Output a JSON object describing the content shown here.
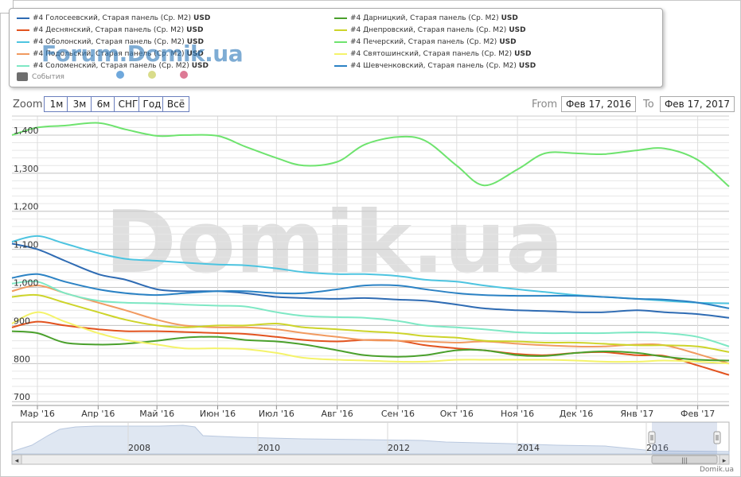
{
  "legend": {
    "items": [
      {
        "name": "#4 Голосеевский, Старая панель (Ср. М2)",
        "currency": "USD",
        "color": "#2e6bb3"
      },
      {
        "name": "#4 Деснянский, Старая панель (Ср. М2)",
        "currency": "USD",
        "color": "#e2531f"
      },
      {
        "name": "#4 Оболонский, Старая панель (Ср. М2)",
        "currency": "USD",
        "color": "#4dc4e0"
      },
      {
        "name": "#4 Подольский, Старая панель (Ср. М2)",
        "currency": "USD",
        "color": "#f19a60"
      },
      {
        "name": "#4 Соломенский, Старая панель (Ср. М2)",
        "currency": "USD",
        "color": "#7ee8c4"
      },
      {
        "name": "#4 Дарницкий, Старая панель (Ср. М2)",
        "currency": "USD",
        "color": "#4aa02c"
      },
      {
        "name": "#4 Днепровский, Старая панель (Ср. М2)",
        "currency": "USD",
        "color": "#cdd42a"
      },
      {
        "name": "#4 Печерский, Старая панель (Ср. М2)",
        "currency": "USD",
        "color": "#6ee36e"
      },
      {
        "name": "#4 Святошинский, Старая панель (Ср. М2)",
        "currency": "USD",
        "color": "#f4f36a"
      },
      {
        "name": "#4 Шевченковский, Старая панель (Ср. М2)",
        "currency": "USD",
        "color": "#2b82c4"
      }
    ],
    "events_label": "События",
    "event_dots": [
      "#6fa8dc",
      "#d9dc8a",
      "#dd7a95"
    ]
  },
  "watermark": {
    "forum": "Forum.Domik.ua",
    "big": "Domik.ua"
  },
  "zoom": {
    "label": "Zoom",
    "buttons": [
      "1м",
      "3м",
      "6м",
      "СНГ",
      "Год",
      "Всё"
    ]
  },
  "range": {
    "from_label": "From",
    "from_value": "Фев 17, 2016",
    "to_label": "To",
    "to_value": "Фев 17, 2017"
  },
  "footer": {
    "credit": "Domik.ua"
  },
  "chart_data": {
    "type": "line",
    "ylim": [
      690,
      1450
    ],
    "yticks": [
      700,
      800,
      900,
      1000,
      1100,
      1200,
      1300,
      1400
    ],
    "ytick_labels": [
      "700",
      "800",
      "900",
      "1,000",
      "1,100",
      "1,200",
      "1,300",
      "1,400"
    ],
    "x_labels": [
      "Мар '16",
      "Апр '16",
      "Май '16",
      "Июн '16",
      "Июл '16",
      "Авг '16",
      "Сен '16",
      "Окт '16",
      "Ноя '16",
      "Дек '16",
      "Янв '17",
      "Фев '17"
    ],
    "x": [
      "2016-02-17",
      "2016-03-01",
      "2016-03-15",
      "2016-04-01",
      "2016-04-15",
      "2016-05-01",
      "2016-05-15",
      "2016-06-01",
      "2016-06-15",
      "2016-07-01",
      "2016-07-15",
      "2016-08-01",
      "2016-08-15",
      "2016-09-01",
      "2016-09-15",
      "2016-10-01",
      "2016-10-15",
      "2016-11-01",
      "2016-11-15",
      "2016-12-01",
      "2016-12-15",
      "2017-01-01",
      "2017-01-15",
      "2017-02-01",
      "2017-02-17"
    ],
    "series": [
      {
        "name": "#4 Голосеевский, Старая панель (Ср. М2)",
        "color": "#2e6bb3",
        "values": [
          1115,
          1100,
          1070,
          1035,
          1020,
          995,
          990,
          990,
          985,
          975,
          972,
          970,
          972,
          968,
          965,
          955,
          945,
          940,
          938,
          935,
          935,
          940,
          935,
          930,
          920
        ]
      },
      {
        "name": "#4 Деснянский, Старая панель (Ср. М2)",
        "color": "#e2531f",
        "values": [
          895,
          910,
          900,
          890,
          885,
          885,
          883,
          880,
          878,
          870,
          862,
          858,
          862,
          860,
          848,
          840,
          835,
          825,
          822,
          828,
          830,
          822,
          820,
          795,
          770
        ]
      },
      {
        "name": "#4 Оболонский, Старая панель (Ср. М2)",
        "color": "#4dc4e0",
        "values": [
          1120,
          1135,
          1115,
          1090,
          1075,
          1070,
          1065,
          1060,
          1058,
          1050,
          1040,
          1035,
          1035,
          1030,
          1020,
          1015,
          1005,
          995,
          988,
          980,
          975,
          970,
          965,
          960,
          958
        ]
      },
      {
        "name": "#4 Подольский, Старая панель (Ср. М2)",
        "color": "#f19a60",
        "values": [
          990,
          1005,
          985,
          960,
          940,
          915,
          900,
          895,
          895,
          890,
          880,
          870,
          862,
          860,
          858,
          855,
          858,
          852,
          848,
          845,
          845,
          850,
          848,
          825,
          800
        ]
      },
      {
        "name": "#4 Соломенский, Старая панель (Ср. М2)",
        "color": "#7ee8c4",
        "values": [
          1010,
          1015,
          985,
          965,
          960,
          958,
          955,
          952,
          950,
          935,
          925,
          922,
          920,
          912,
          900,
          895,
          890,
          882,
          880,
          880,
          880,
          882,
          880,
          870,
          845
        ]
      },
      {
        "name": "#4 Дарницкий, Старая панель (Ср. М2)",
        "color": "#4aa02c",
        "values": [
          885,
          880,
          855,
          850,
          852,
          860,
          868,
          870,
          862,
          858,
          850,
          835,
          822,
          818,
          822,
          835,
          835,
          822,
          820,
          828,
          832,
          828,
          818,
          810,
          808
        ]
      },
      {
        "name": "#4 Днепровский, Старая панель (Ср. М2)",
        "color": "#cdd42a",
        "values": [
          975,
          980,
          960,
          935,
          915,
          900,
          895,
          900,
          900,
          905,
          895,
          890,
          885,
          880,
          872,
          868,
          860,
          858,
          855,
          855,
          852,
          848,
          848,
          845,
          830
        ]
      },
      {
        "name": "#4 Печерский, Старая панель (Ср. М2)",
        "color": "#6ee36e",
        "values": [
          1400,
          1420,
          1425,
          1432,
          1415,
          1398,
          1400,
          1398,
          1370,
          1340,
          1320,
          1330,
          1375,
          1395,
          1385,
          1320,
          1268,
          1310,
          1352,
          1352,
          1350,
          1360,
          1365,
          1335,
          1265
        ]
      },
      {
        "name": "#4 Святошинский, Старая панель (Ср. М2)",
        "color": "#f4f36a",
        "values": [
          905,
          935,
          910,
          880,
          862,
          850,
          840,
          840,
          838,
          828,
          815,
          810,
          808,
          805,
          805,
          810,
          810,
          810,
          810,
          808,
          805,
          805,
          808,
          805,
          800
        ]
      },
      {
        "name": "#4 Шевченковский, Старая панель (Ср. М2)",
        "color": "#2b82c4",
        "values": [
          1025,
          1035,
          1015,
          995,
          985,
          980,
          985,
          990,
          990,
          985,
          985,
          995,
          1005,
          1005,
          995,
          985,
          980,
          978,
          978,
          978,
          975,
          970,
          968,
          960,
          945
        ]
      }
    ]
  },
  "navigator": {
    "year_labels": [
      "2008",
      "2010",
      "2012",
      "2014",
      "2016"
    ],
    "left_arrow": "◂",
    "right_arrow": "▸",
    "grip": "|||"
  }
}
